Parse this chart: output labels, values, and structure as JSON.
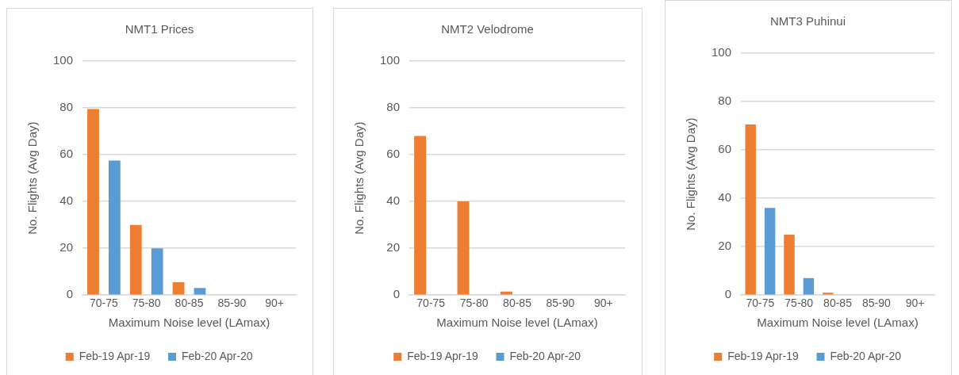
{
  "chart_data": [
    {
      "type": "bar",
      "title": "NMT1 Prices",
      "xlabel": "Maximum Noise level (LAmax)",
      "ylabel": "No. Flights (Avg Day)",
      "categories": [
        "70-75",
        "75-80",
        "80-85",
        "85-90",
        "90+"
      ],
      "series": [
        {
          "name": "Feb-19 Apr-19",
          "color": "#ed7d31",
          "values": [
            79.5,
            30,
            5.5,
            0,
            0
          ]
        },
        {
          "name": "Feb-20 Apr-20",
          "color": "#5b9bd5",
          "values": [
            57.5,
            20,
            3,
            0,
            0
          ]
        }
      ],
      "ylim": [
        0,
        100
      ],
      "yticks": [
        0,
        20,
        40,
        60,
        80,
        100
      ],
      "grid": "y",
      "legend": "bottom"
    },
    {
      "type": "bar",
      "title": "NMT2 Velodrome",
      "xlabel": "Maximum Noise level (LAmax)",
      "ylabel": "No. Flights (Avg Day)",
      "categories": [
        "70-75",
        "75-80",
        "80-85",
        "85-90",
        "90+"
      ],
      "series": [
        {
          "name": "Feb-19 Apr-19",
          "color": "#ed7d31",
          "values": [
            68,
            40,
            1.5,
            0,
            0
          ]
        },
        {
          "name": "Feb-20 Apr-20",
          "color": "#5b9bd5",
          "values": [
            0,
            0,
            0,
            0,
            0
          ]
        }
      ],
      "ylim": [
        0,
        100
      ],
      "yticks": [
        0,
        20,
        40,
        60,
        80,
        100
      ],
      "grid": "y",
      "legend": "bottom"
    },
    {
      "type": "bar",
      "title": "NMT3 Puhinui",
      "xlabel": "Maximum Noise level (LAmax)",
      "ylabel": "No. Flights (Avg Day)",
      "categories": [
        "70-75",
        "75-80",
        "80-85",
        "85-90",
        "90+"
      ],
      "series": [
        {
          "name": "Feb-19 Apr-19",
          "color": "#ed7d31",
          "values": [
            70.5,
            25,
            1,
            0,
            0
          ]
        },
        {
          "name": "Feb-20 Apr-20",
          "color": "#5b9bd5",
          "values": [
            36,
            7,
            0,
            0,
            0
          ]
        }
      ],
      "ylim": [
        0,
        100
      ],
      "yticks": [
        0,
        20,
        40,
        60,
        80,
        100
      ],
      "grid": "y",
      "legend": "bottom"
    }
  ]
}
